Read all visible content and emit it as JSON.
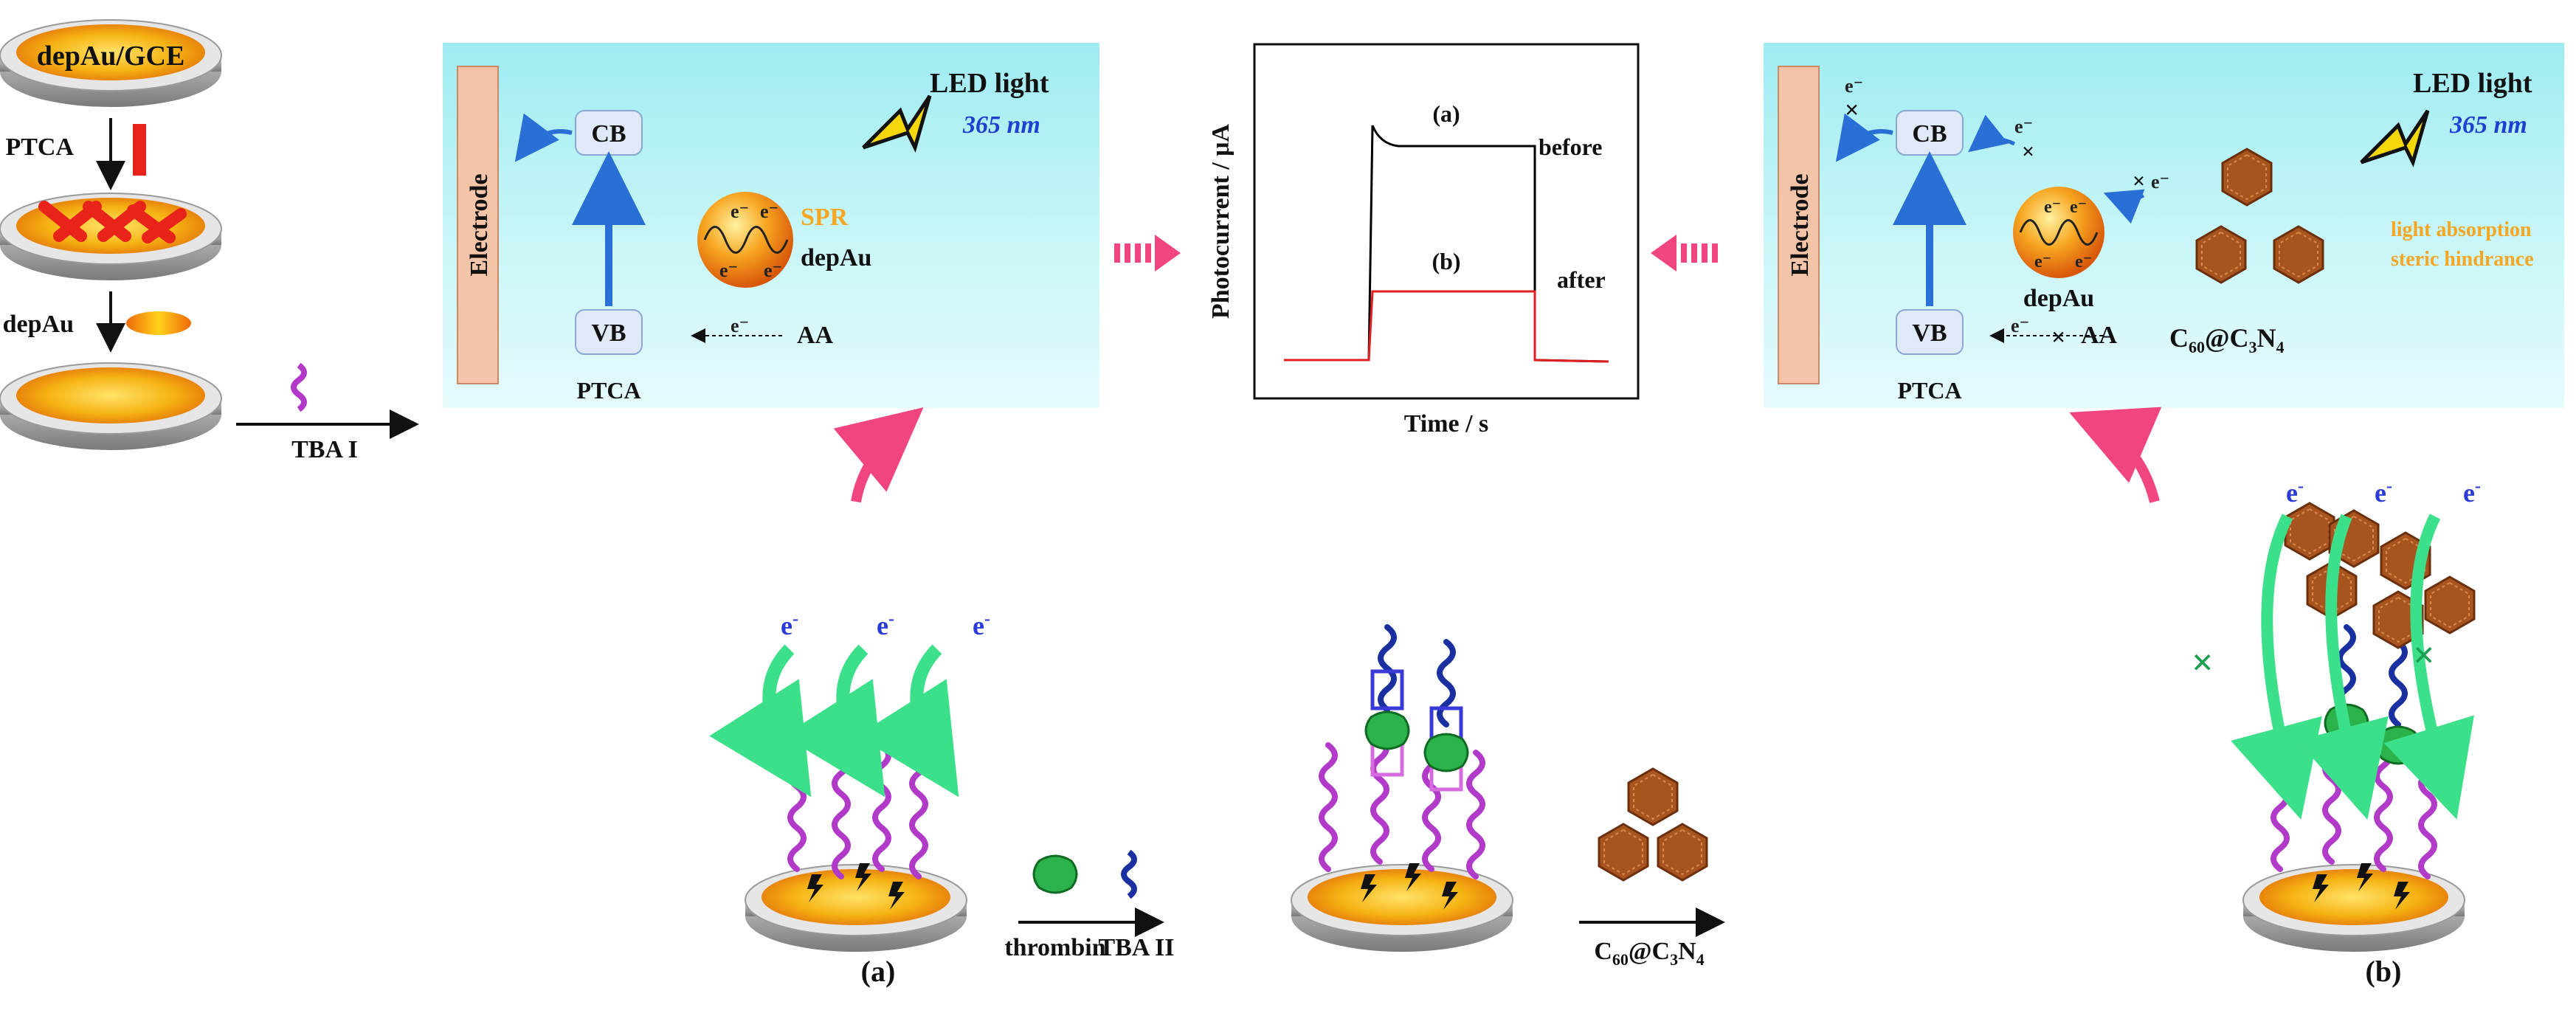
{
  "left_column": {
    "electrode_label": "depAu/GCE",
    "step1_label": "PTCA",
    "step2_label": "depAu"
  },
  "arrows": {
    "tba1": "TBA I",
    "thrombin": "thrombin",
    "tba2": "TBA II",
    "c60_main": "C",
    "c60_sub": "60",
    "c60_at": "@C",
    "c3n4_sub": "3",
    "c3n4_N": "N",
    "c3n4_sub2": "4"
  },
  "panel_left": {
    "electrode": "Electrode",
    "cb": "CB",
    "vb": "VB",
    "ptca": "PTCA",
    "led": "LED light",
    "wavelength": "365 nm",
    "spr": "SPR",
    "depau": "depAu",
    "aa": "AA",
    "e": "e",
    "minus": "-"
  },
  "panel_right": {
    "electrode": "Electrode",
    "cb": "CB",
    "vb": "VB",
    "ptca": "PTCA",
    "led": "LED light",
    "wavelength": "365 nm",
    "depau": "depAu",
    "aa": "AA",
    "light_absorption": "light absorption",
    "steric": "steric hindrance",
    "c60_c": "C",
    "c60_sub": "60",
    "c60_at": "@C",
    "c3n4_sub": "3",
    "c3n4_N": "N",
    "c3n4_sub2": "4",
    "e": "e",
    "minus": "-",
    "cross": "×"
  },
  "chart_data": {
    "type": "line",
    "ylabel": "Photocurrent / μA",
    "xlabel": "Time / s",
    "series": [
      {
        "name": "(a)",
        "annotation": "before",
        "color": "#000000"
      },
      {
        "name": "(b)",
        "annotation": "after",
        "color": "#e02020"
      }
    ]
  },
  "stages": {
    "a_label": "(a)",
    "b_label": "(b)",
    "e": "e",
    "minus": "-"
  },
  "colors": {
    "panel_bg": "#a8f0f4",
    "electrode_bar": "#f4c4a8",
    "dna_purple": "#b23ac8",
    "dna_blue": "#1a2fa0",
    "thrombin_green": "#2bb24a",
    "arrow_pink": "#f0457e",
    "arrow_green": "#3de08a",
    "red_ptca": "#e8231a",
    "gold": "#f5a90a"
  }
}
